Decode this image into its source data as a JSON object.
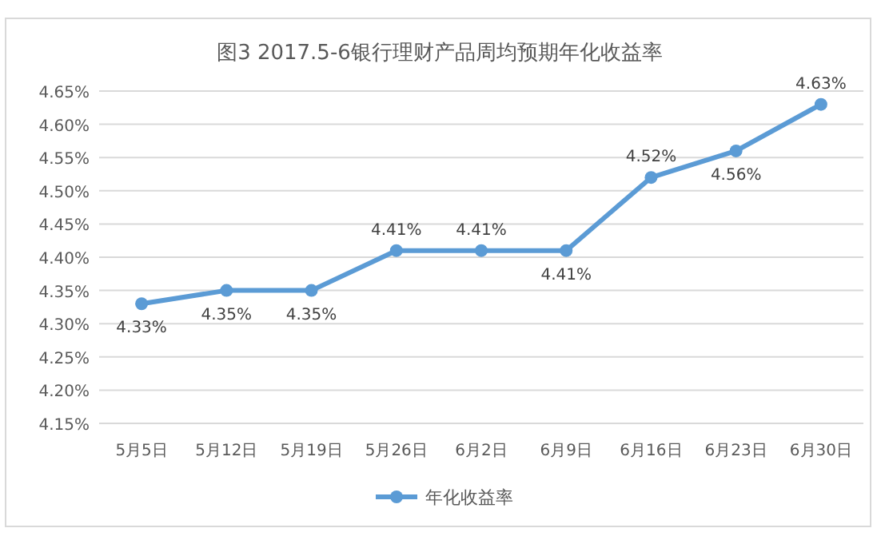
{
  "chart_data": {
    "type": "line",
    "title": "图3 2017.5-6银行理财产品周均预期年化收益率",
    "categories": [
      "5月5日",
      "5月12日",
      "5月19日",
      "5月26日",
      "6月2日",
      "6月9日",
      "6月16日",
      "6月23日",
      "6月30日"
    ],
    "series": [
      {
        "name": "年化收益率",
        "color": "#5b9bd5",
        "values": [
          4.33,
          4.35,
          4.35,
          4.41,
          4.41,
          4.41,
          4.52,
          4.56,
          4.63
        ],
        "value_labels": [
          "4.33%",
          "4.35%",
          "4.35%",
          "4.41%",
          "4.41%",
          "4.41%",
          "4.52%",
          "4.56%",
          "4.63%"
        ]
      }
    ],
    "ylim": [
      4.15,
      4.65
    ],
    "yticks": [
      {
        "value": 4.15,
        "label": "4.15%"
      },
      {
        "value": 4.2,
        "label": "4.20%"
      },
      {
        "value": 4.25,
        "label": "4.25%"
      },
      {
        "value": 4.3,
        "label": "4.30%"
      },
      {
        "value": 4.35,
        "label": "4.35%"
      },
      {
        "value": 4.4,
        "label": "4.40%"
      },
      {
        "value": 4.45,
        "label": "4.45%"
      },
      {
        "value": 4.5,
        "label": "4.50%"
      },
      {
        "value": 4.55,
        "label": "4.55%"
      },
      {
        "value": 4.6,
        "label": "4.60%"
      },
      {
        "value": 4.65,
        "label": "4.65%"
      }
    ],
    "grid": "y",
    "legend": "bottom",
    "marker": "circle",
    "line_style": "solid"
  }
}
